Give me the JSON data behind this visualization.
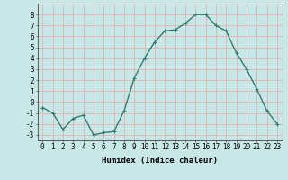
{
  "x": [
    0,
    1,
    2,
    3,
    4,
    5,
    6,
    7,
    8,
    9,
    10,
    11,
    12,
    13,
    14,
    15,
    16,
    17,
    18,
    19,
    20,
    21,
    22,
    23
  ],
  "y": [
    -0.5,
    -1.0,
    -2.5,
    -1.5,
    -1.2,
    -3.0,
    -2.8,
    -2.7,
    -0.8,
    2.2,
    4.0,
    5.5,
    6.5,
    6.6,
    7.2,
    8.0,
    8.0,
    7.0,
    6.5,
    4.5,
    3.0,
    1.2,
    -0.8,
    -2.0
  ],
  "line_color": "#2e7d6e",
  "marker": "+",
  "marker_size": 3,
  "bg_color": "#c8e8e8",
  "grid_color": "#e8b0b0",
  "xlabel": "Humidex (Indice chaleur)",
  "ylim": [
    -3.5,
    9.0
  ],
  "xlim": [
    -0.5,
    23.5
  ],
  "yticks": [
    -3,
    -2,
    -1,
    0,
    1,
    2,
    3,
    4,
    5,
    6,
    7,
    8
  ],
  "xticks": [
    0,
    1,
    2,
    3,
    4,
    5,
    6,
    7,
    8,
    9,
    10,
    11,
    12,
    13,
    14,
    15,
    16,
    17,
    18,
    19,
    20,
    21,
    22,
    23
  ],
  "xtick_labels": [
    "0",
    "1",
    "2",
    "3",
    "4",
    "5",
    "6",
    "7",
    "8",
    "9",
    "10",
    "11",
    "12",
    "13",
    "14",
    "15",
    "16",
    "17",
    "18",
    "19",
    "20",
    "21",
    "22",
    "23"
  ],
  "xlabel_fontsize": 6.5,
  "tick_fontsize": 5.5,
  "line_width": 1.0
}
